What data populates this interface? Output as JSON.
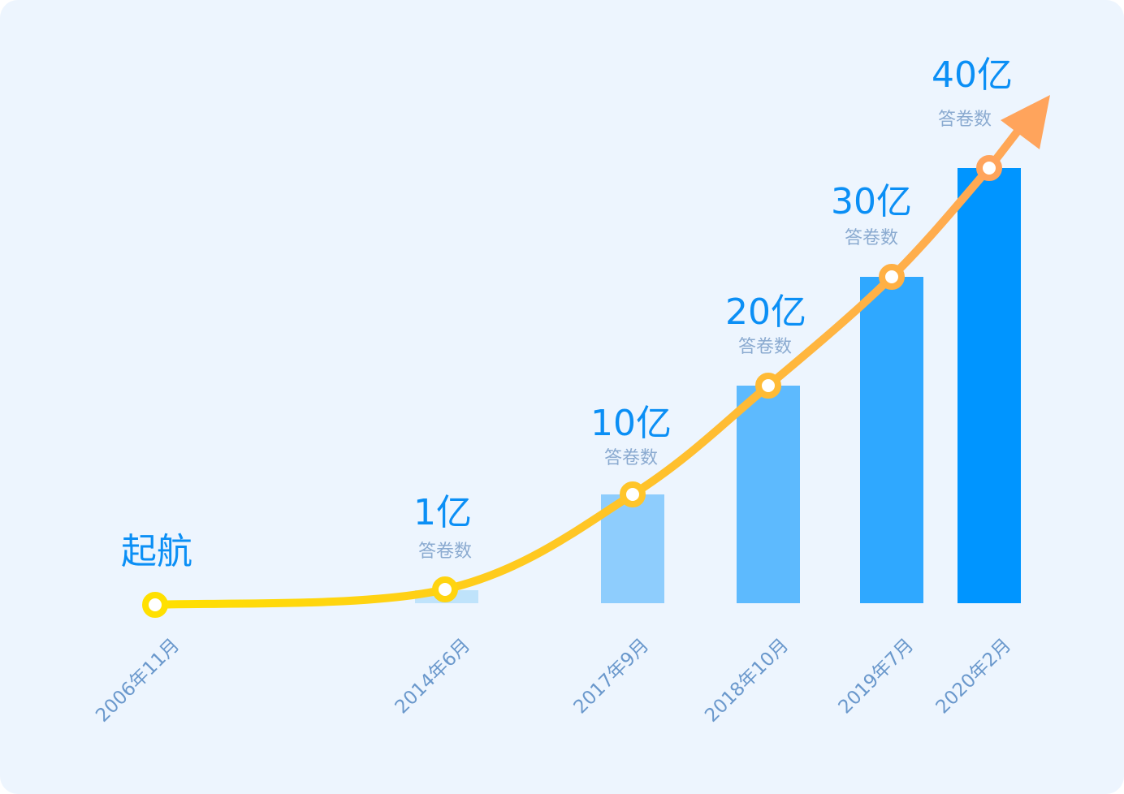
{
  "chart_data": {
    "type": "bar+line",
    "categories": [
      "2006年11月",
      "2014年6月",
      "2017年9月",
      "2018年10月",
      "2019年7月",
      "2020年2月"
    ],
    "values": [
      0,
      1,
      10,
      20,
      30,
      40
    ],
    "unit": "亿",
    "value_labels": [
      "起航",
      "1亿",
      "10亿",
      "20亿",
      "30亿",
      "40亿"
    ],
    "sub_label": "答卷数",
    "ylim": [
      0,
      40
    ],
    "grid": false,
    "legend": "none",
    "colors": {
      "bars": [
        "#BFE3FB",
        "#8ECDFD",
        "#5DBAFE",
        "#2FA8FF",
        "#0095FF"
      ],
      "line_start": "#FFE000",
      "line_mid": "#FFC22A",
      "line_end": "#FFA45C",
      "label": "#0B8FF5",
      "last_label": "#FFA45C"
    }
  }
}
